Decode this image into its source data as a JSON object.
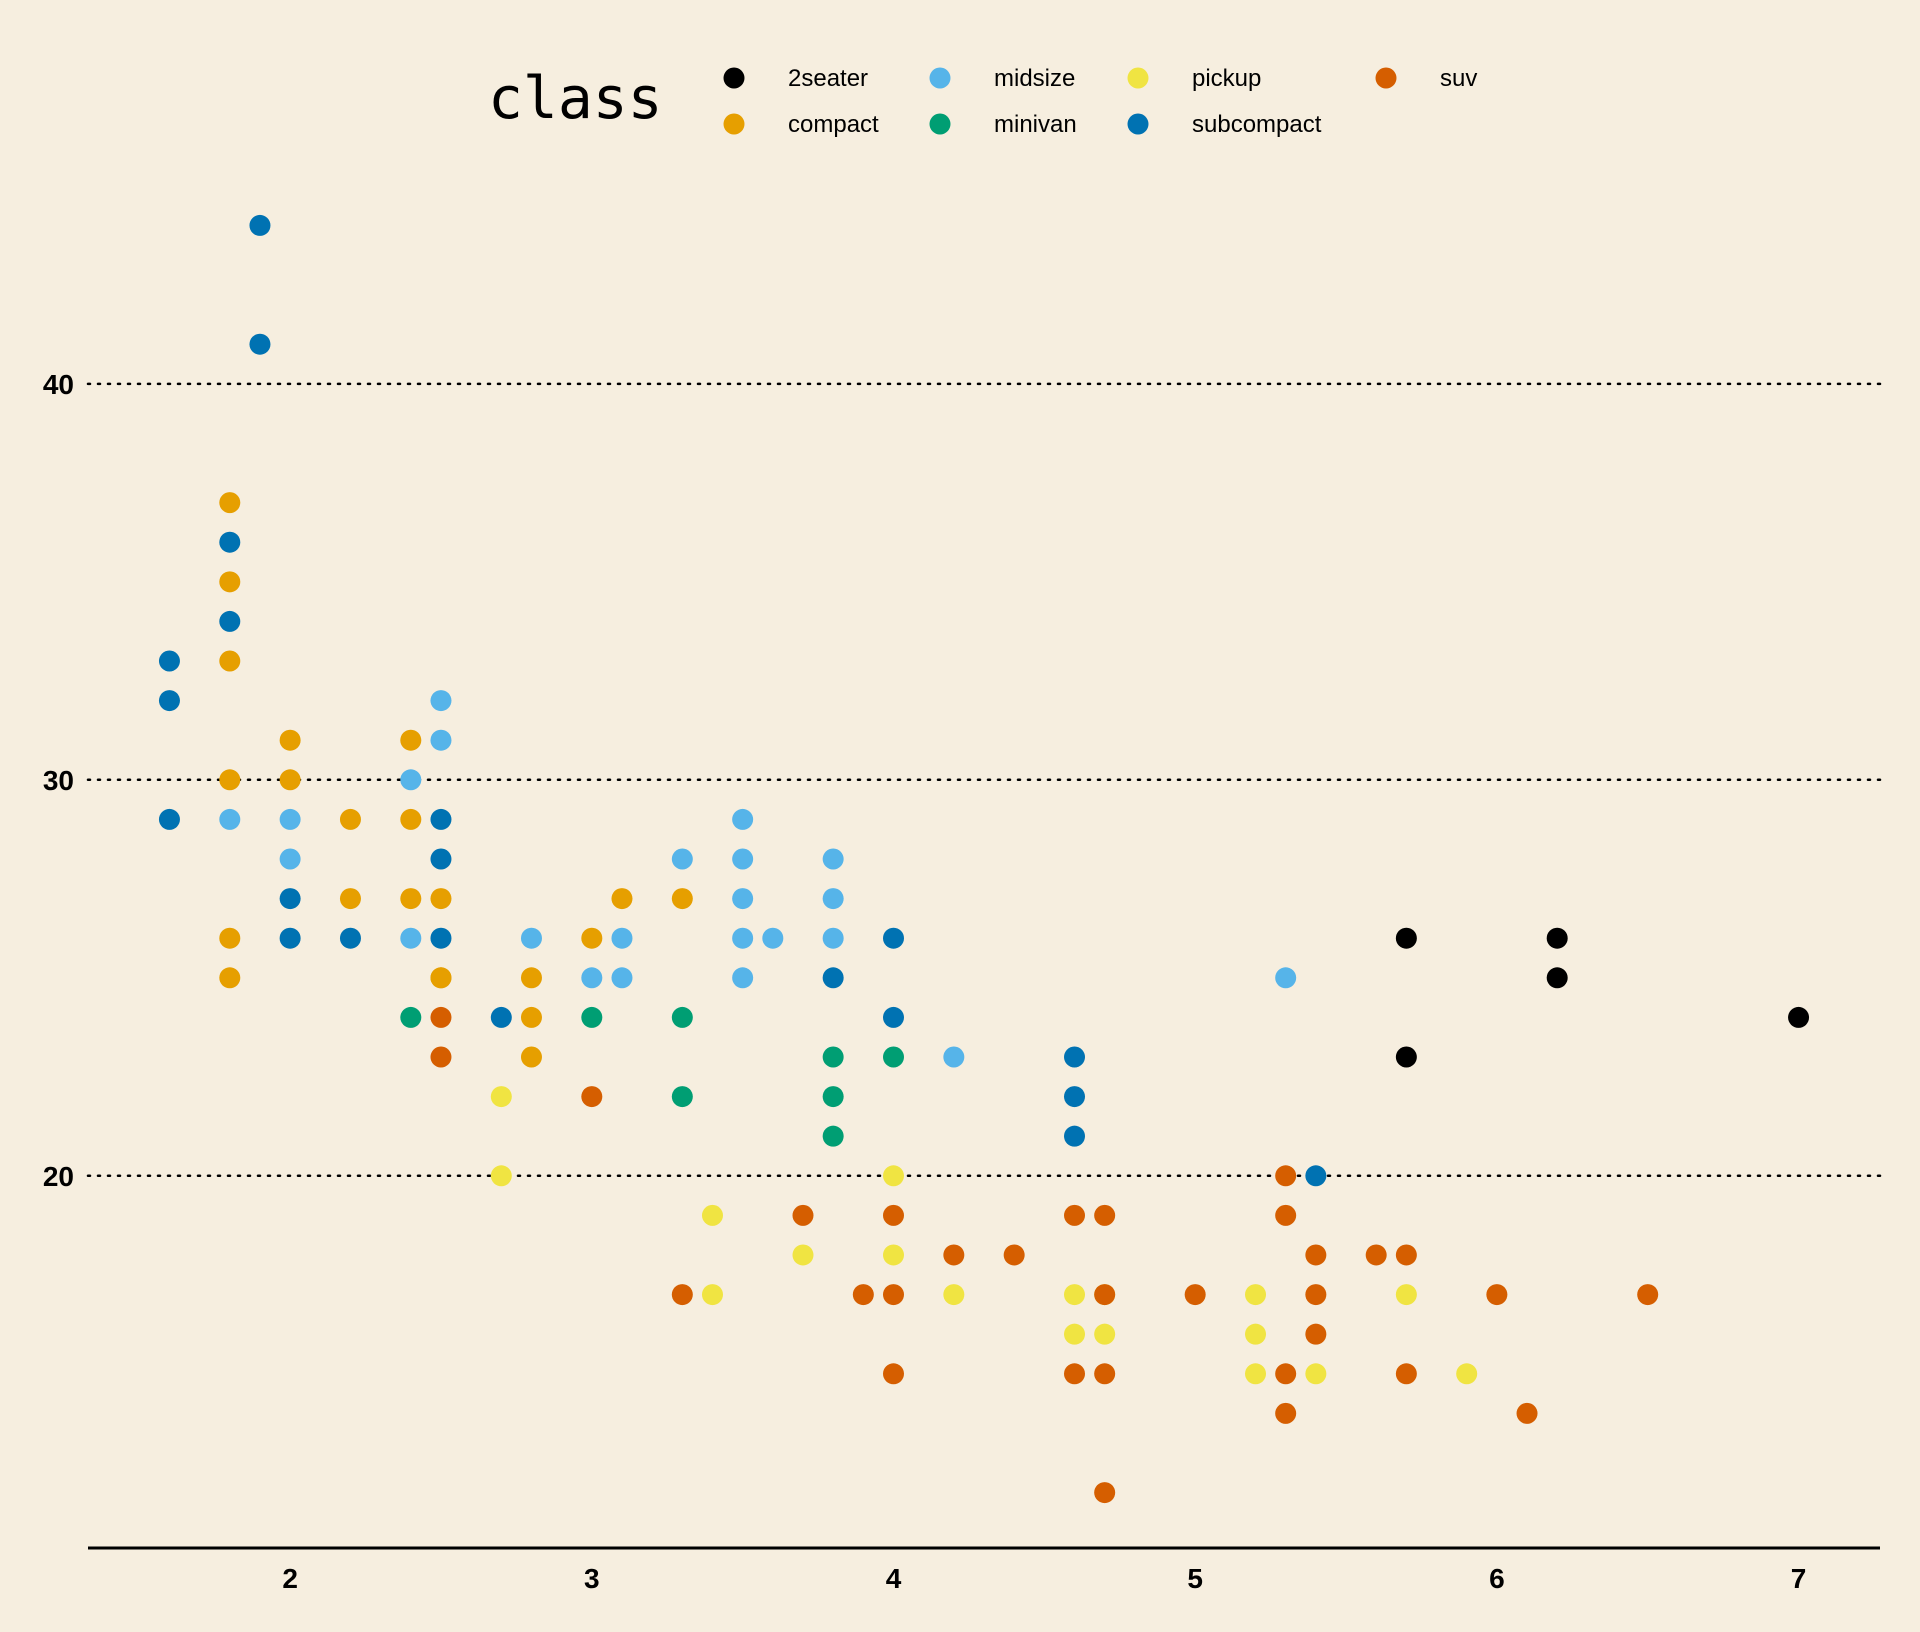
{
  "chart_data": {
    "type": "scatter",
    "legend": {
      "title": "class",
      "position": "top",
      "entries": [
        {
          "name": "2seater",
          "color": "#000000"
        },
        {
          "name": "compact",
          "color": "#E69F00"
        },
        {
          "name": "midsize",
          "color": "#56B4E9"
        },
        {
          "name": "minivan",
          "color": "#009E73"
        },
        {
          "name": "pickup",
          "color": "#F0E442"
        },
        {
          "name": "subcompact",
          "color": "#0072B2"
        },
        {
          "name": "suv",
          "color": "#D55E00"
        }
      ]
    },
    "x_ticks": [
      2,
      3,
      4,
      5,
      6,
      7
    ],
    "y_ticks": [
      20,
      30,
      40
    ],
    "xlim": [
      1.33,
      7.27
    ],
    "ylim": [
      10.6,
      45.4
    ],
    "grid": "horizontal dotted",
    "series": [
      {
        "name": "2seater",
        "x": [
          5.7,
          5.7,
          6.2,
          6.2,
          7.0
        ],
        "y": [
          26,
          23,
          26,
          25,
          24
        ]
      },
      {
        "name": "compact",
        "x": [
          1.8,
          1.8,
          1.8,
          1.8,
          1.8,
          1.8,
          2.0,
          2.0,
          2.2,
          2.2,
          2.4,
          2.4,
          2.4,
          2.5,
          2.5,
          2.5,
          2.8,
          2.8,
          2.8,
          3.0,
          3.1,
          3.3
        ],
        "y": [
          37,
          35,
          33,
          30,
          26,
          25,
          31,
          30,
          29,
          27,
          31,
          29,
          27,
          27,
          25,
          25,
          25,
          24,
          23,
          26,
          27,
          27
        ]
      },
      {
        "name": "midsize",
        "x": [
          1.8,
          2.0,
          2.0,
          2.4,
          2.4,
          2.5,
          2.5,
          2.8,
          3.0,
          3.1,
          3.1,
          3.3,
          3.5,
          3.5,
          3.5,
          3.5,
          3.5,
          3.6,
          3.8,
          3.8,
          3.8,
          4.2,
          5.3
        ],
        "y": [
          29,
          29,
          28,
          30,
          26,
          32,
          31,
          26,
          25,
          26,
          25,
          28,
          29,
          28,
          27,
          26,
          25,
          26,
          28,
          27,
          26,
          23,
          25
        ]
      },
      {
        "name": "minivan",
        "x": [
          2.4,
          3.0,
          3.3,
          3.3,
          3.8,
          3.8,
          3.8,
          4.0
        ],
        "y": [
          24,
          24,
          24,
          22,
          23,
          22,
          21,
          23
        ]
      },
      {
        "name": "pickup",
        "x": [
          2.7,
          2.7,
          3.4,
          3.4,
          3.7,
          4.0,
          4.0,
          4.2,
          4.6,
          4.6,
          4.7,
          4.7,
          5.2,
          5.2,
          5.2,
          5.4,
          5.7,
          5.9
        ],
        "y": [
          22,
          20,
          19,
          17,
          18,
          20,
          18,
          17,
          17,
          16,
          17,
          16,
          17,
          16,
          15,
          15,
          17,
          15
        ]
      },
      {
        "name": "subcompact",
        "x": [
          1.6,
          1.6,
          1.6,
          1.8,
          1.8,
          1.9,
          1.9,
          2.0,
          2.0,
          2.2,
          2.5,
          2.5,
          2.5,
          2.7,
          3.8,
          4.0,
          4.0,
          4.6,
          4.6,
          4.6,
          5.4
        ],
        "y": [
          33,
          32,
          29,
          36,
          34,
          44,
          41,
          27,
          26,
          26,
          29,
          28,
          26,
          24,
          25,
          26,
          24,
          23,
          22,
          21,
          20
        ]
      },
      {
        "name": "suv",
        "x": [
          2.5,
          2.5,
          3.0,
          3.3,
          3.7,
          3.9,
          4.0,
          4.0,
          4.0,
          4.2,
          4.4,
          4.6,
          4.6,
          4.7,
          4.7,
          4.7,
          4.7,
          5.0,
          5.3,
          5.3,
          5.3,
          5.3,
          5.4,
          5.4,
          5.4,
          5.6,
          5.7,
          5.7,
          6.0,
          6.1,
          6.5
        ],
        "y": [
          24,
          23,
          22,
          17,
          19,
          17,
          19,
          17,
          15,
          18,
          18,
          19,
          15,
          19,
          17,
          15,
          12,
          17,
          20,
          19,
          15,
          14,
          18,
          17,
          16,
          18,
          18,
          15,
          17,
          14,
          17
        ]
      }
    ]
  }
}
